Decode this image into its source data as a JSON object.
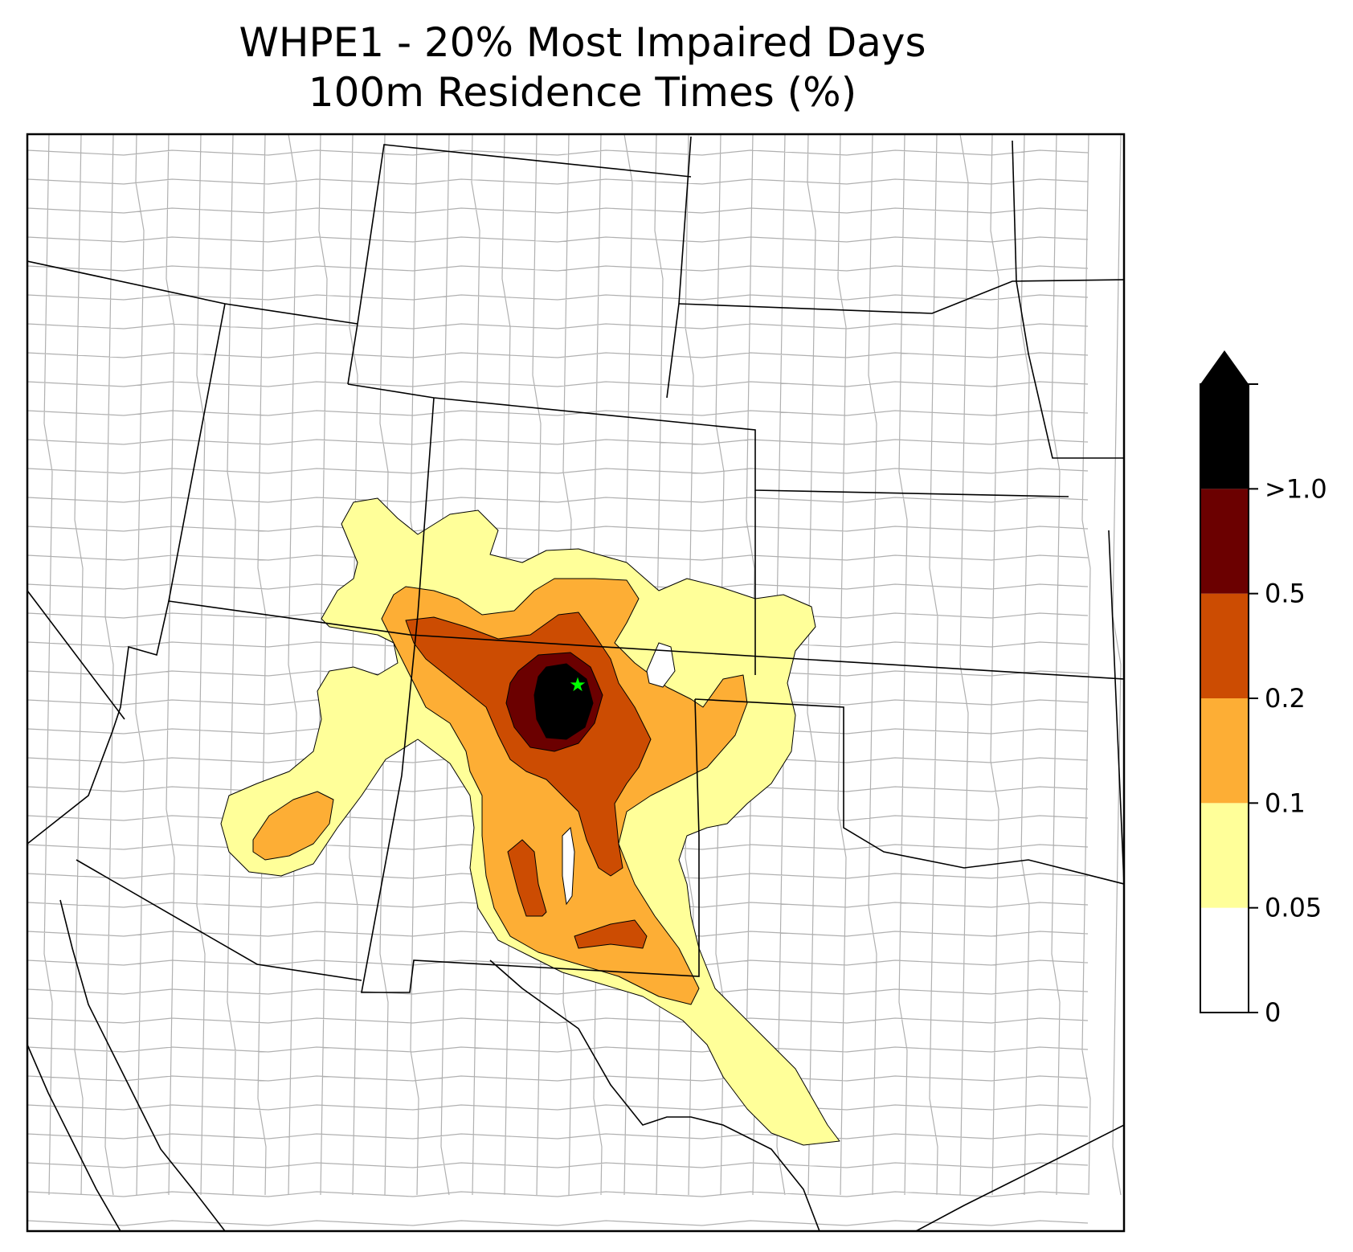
{
  "title": {
    "line1": "WHPE1 - 20% Most Impaired Days",
    "line2": "100m Residence Times (%)"
  },
  "legend": {
    "type": "colorbar",
    "extend": "max",
    "levels": [
      {
        "label": "0",
        "color": "#ffffff"
      },
      {
        "label": "0.05",
        "color": "#ffff99"
      },
      {
        "label": "0.1",
        "color": "#fdae35"
      },
      {
        "label": "0.2",
        "color": "#cc4c02"
      },
      {
        "label": "0.5",
        "color": "#6b0000"
      },
      {
        "label": ">1.0",
        "color": "#000000"
      }
    ],
    "overflow_color": "#000000"
  },
  "colors": {
    "state_lines": "#000000",
    "county_lines": "#a9a9a9",
    "site_marker": "#00ff00",
    "contour_outline": "#000000"
  },
  "markers": [
    {
      "name": "site-star-icon",
      "label": ""
    }
  ]
}
